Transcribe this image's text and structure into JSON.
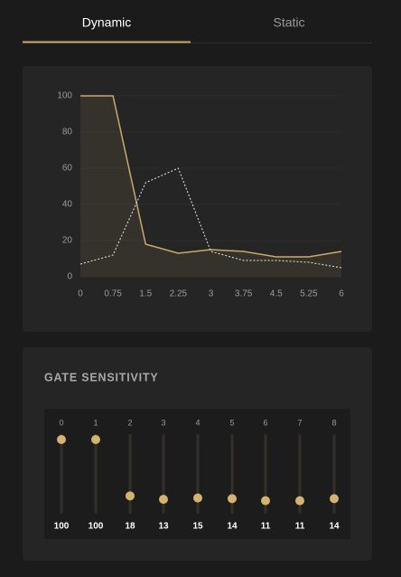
{
  "tabs": [
    "Dynamic",
    "Static"
  ],
  "chart_data": {
    "type": "line",
    "x": [
      0,
      0.75,
      1.5,
      2.25,
      3,
      3.75,
      4.5,
      5.25,
      6
    ],
    "series": [
      {
        "color": "#c9a96b",
        "style": "solid",
        "area": true,
        "values": [
          100,
          100,
          18,
          13,
          15,
          14,
          11,
          11,
          14
        ]
      },
      {
        "color": "#e8e8e8",
        "style": "dotted",
        "values": [
          7,
          12,
          52,
          60,
          14,
          9,
          9,
          8,
          5
        ]
      }
    ],
    "xlim": [
      0,
      6
    ],
    "xticks": [
      0,
      0.75,
      1.5,
      2.25,
      3,
      3.75,
      4.5,
      5.25,
      6
    ],
    "ylim": [
      0,
      100
    ],
    "yticks": [
      0,
      20,
      40,
      60,
      80,
      100
    ],
    "grid": true
  },
  "gate_sensitivity": {
    "title": "GATE SENSITIVITY",
    "gates": [
      0,
      1,
      2,
      3,
      4,
      5,
      6,
      7,
      8
    ],
    "values": [
      100,
      100,
      18,
      13,
      15,
      14,
      11,
      11,
      14
    ],
    "range": [
      0,
      100
    ]
  }
}
